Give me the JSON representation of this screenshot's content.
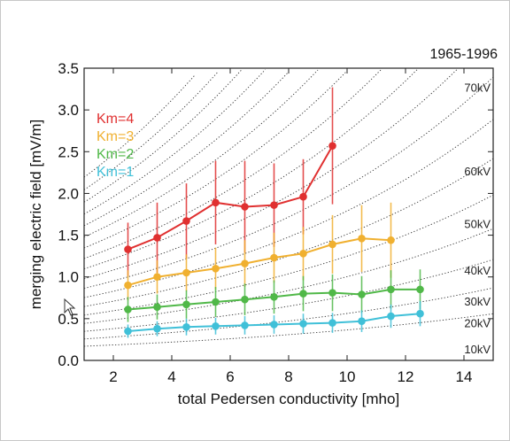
{
  "chart_data": {
    "type": "line",
    "title": "1965-1996",
    "xlabel": "total Pedersen conductivity [mho]",
    "ylabel": "merging electric field [mV/m]",
    "xlim": [
      1,
      15
    ],
    "ylim": [
      0,
      3.5
    ],
    "xticks": [
      2,
      4,
      6,
      8,
      10,
      12,
      14
    ],
    "yticks": [
      "0.0",
      "0.5",
      "1.0",
      "1.5",
      "2.0",
      "2.5",
      "3.0",
      "3.5"
    ],
    "grid": false,
    "legend_position": "top-left",
    "series": [
      {
        "name": "Km=4",
        "color": "#e03030",
        "x": [
          2.5,
          3.5,
          4.5,
          5.5,
          6.5,
          7.5,
          8.5,
          9.5
        ],
        "y": [
          1.33,
          1.47,
          1.67,
          1.89,
          1.84,
          1.86,
          1.96,
          2.57
        ],
        "err": [
          0.32,
          0.42,
          0.45,
          0.5,
          0.55,
          0.5,
          0.45,
          0.7
        ]
      },
      {
        "name": "Km=3",
        "color": "#f0b030",
        "x": [
          2.5,
          3.5,
          4.5,
          5.5,
          6.5,
          7.5,
          8.5,
          9.5,
          10.5,
          11.5
        ],
        "y": [
          0.9,
          1.0,
          1.05,
          1.1,
          1.16,
          1.23,
          1.28,
          1.39,
          1.46,
          1.44
        ],
        "err": [
          0.18,
          0.2,
          0.22,
          0.25,
          0.28,
          0.3,
          0.32,
          0.35,
          0.4,
          0.45
        ]
      },
      {
        "name": "Km=2",
        "color": "#50b848",
        "x": [
          2.5,
          3.5,
          4.5,
          5.5,
          6.5,
          7.5,
          8.5,
          9.5,
          10.5,
          11.5,
          12.5
        ],
        "y": [
          0.61,
          0.64,
          0.67,
          0.7,
          0.73,
          0.76,
          0.8,
          0.81,
          0.79,
          0.85,
          0.85
        ],
        "err": [
          0.15,
          0.15,
          0.17,
          0.18,
          0.19,
          0.2,
          0.21,
          0.22,
          0.22,
          0.23,
          0.24
        ]
      },
      {
        "name": "Km=1",
        "color": "#40c0d8",
        "x": [
          2.5,
          3.5,
          4.5,
          5.5,
          6.5,
          7.5,
          8.5,
          9.5,
          10.5,
          11.5,
          12.5
        ],
        "y": [
          0.35,
          0.38,
          0.4,
          0.41,
          0.42,
          0.43,
          0.44,
          0.45,
          0.47,
          0.53,
          0.56
        ],
        "err": [
          0.08,
          0.09,
          0.1,
          0.1,
          0.11,
          0.11,
          0.12,
          0.12,
          0.13,
          0.14,
          0.15
        ]
      }
    ],
    "reference_curves": {
      "description_values_kV": [
        10,
        20,
        30,
        40,
        50,
        60,
        70
      ],
      "labels": [
        "10kV",
        "20kV",
        "30kV",
        "40kV",
        "50kV",
        "60kV",
        "70kV"
      ],
      "style": "dotted",
      "line_count": 18
    }
  }
}
